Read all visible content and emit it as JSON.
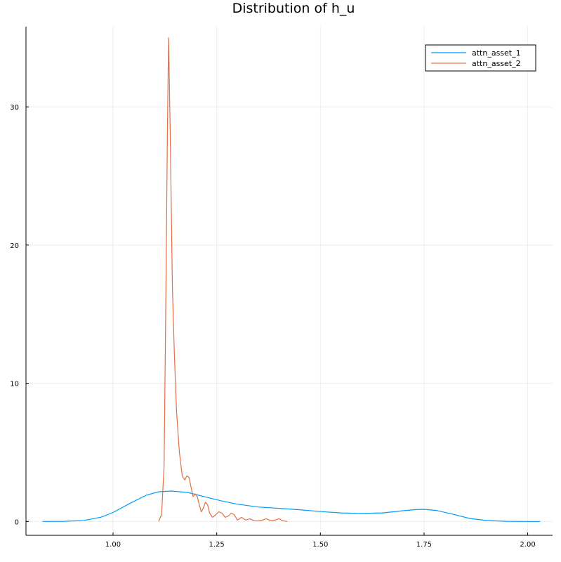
{
  "chart_data": {
    "type": "line",
    "title": "Distribution of h_u",
    "xlabel": "",
    "ylabel": "",
    "xlim": [
      0.79,
      2.06
    ],
    "ylim": [
      -1.0,
      35.8
    ],
    "x_ticks": [
      1.0,
      1.25,
      1.5,
      1.75,
      2.0
    ],
    "x_tick_labels": [
      "1.00",
      "1.25",
      "1.50",
      "1.75",
      "2.00"
    ],
    "y_ticks": [
      0,
      10,
      20,
      30
    ],
    "y_tick_labels": [
      "0",
      "10",
      "20",
      "30"
    ],
    "grid": true,
    "legend_position": "top-right",
    "series": [
      {
        "name": "attn_asset_1",
        "color": "#009AFA",
        "x": [
          0.83,
          0.88,
          0.93,
          0.97,
          1.0,
          1.04,
          1.08,
          1.11,
          1.14,
          1.18,
          1.22,
          1.26,
          1.3,
          1.35,
          1.4,
          1.45,
          1.5,
          1.55,
          1.6,
          1.65,
          1.7,
          1.73,
          1.75,
          1.78,
          1.82,
          1.86,
          1.9,
          1.95,
          2.0,
          2.03
        ],
        "y": [
          0.0,
          0.01,
          0.08,
          0.3,
          0.65,
          1.3,
          1.9,
          2.15,
          2.2,
          2.1,
          1.8,
          1.5,
          1.25,
          1.05,
          0.95,
          0.85,
          0.72,
          0.62,
          0.58,
          0.62,
          0.78,
          0.86,
          0.88,
          0.8,
          0.52,
          0.22,
          0.07,
          0.01,
          0.0,
          0.0
        ]
      },
      {
        "name": "attn_asset_2",
        "color": "#E26F46",
        "x": [
          1.11,
          1.117,
          1.123,
          1.127,
          1.131,
          1.134,
          1.138,
          1.143,
          1.148,
          1.153,
          1.16,
          1.167,
          1.173,
          1.178,
          1.183,
          1.188,
          1.193,
          1.198,
          1.203,
          1.208,
          1.213,
          1.218,
          1.223,
          1.228,
          1.233,
          1.24,
          1.248,
          1.255,
          1.263,
          1.27,
          1.278,
          1.285,
          1.292,
          1.3,
          1.31,
          1.32,
          1.33,
          1.34,
          1.35,
          1.36,
          1.37,
          1.38,
          1.39,
          1.4,
          1.41,
          1.42
        ],
        "y": [
          0.0,
          0.5,
          4.0,
          15.0,
          28.0,
          35.0,
          28.0,
          17.0,
          12.0,
          8.0,
          5.0,
          3.3,
          3.0,
          3.3,
          3.2,
          2.5,
          1.8,
          2.0,
          1.8,
          1.2,
          0.7,
          1.0,
          1.4,
          1.2,
          0.6,
          0.3,
          0.5,
          0.7,
          0.6,
          0.3,
          0.4,
          0.6,
          0.5,
          0.1,
          0.3,
          0.1,
          0.2,
          0.05,
          0.05,
          0.1,
          0.2,
          0.05,
          0.1,
          0.2,
          0.05,
          0.0
        ]
      }
    ]
  }
}
